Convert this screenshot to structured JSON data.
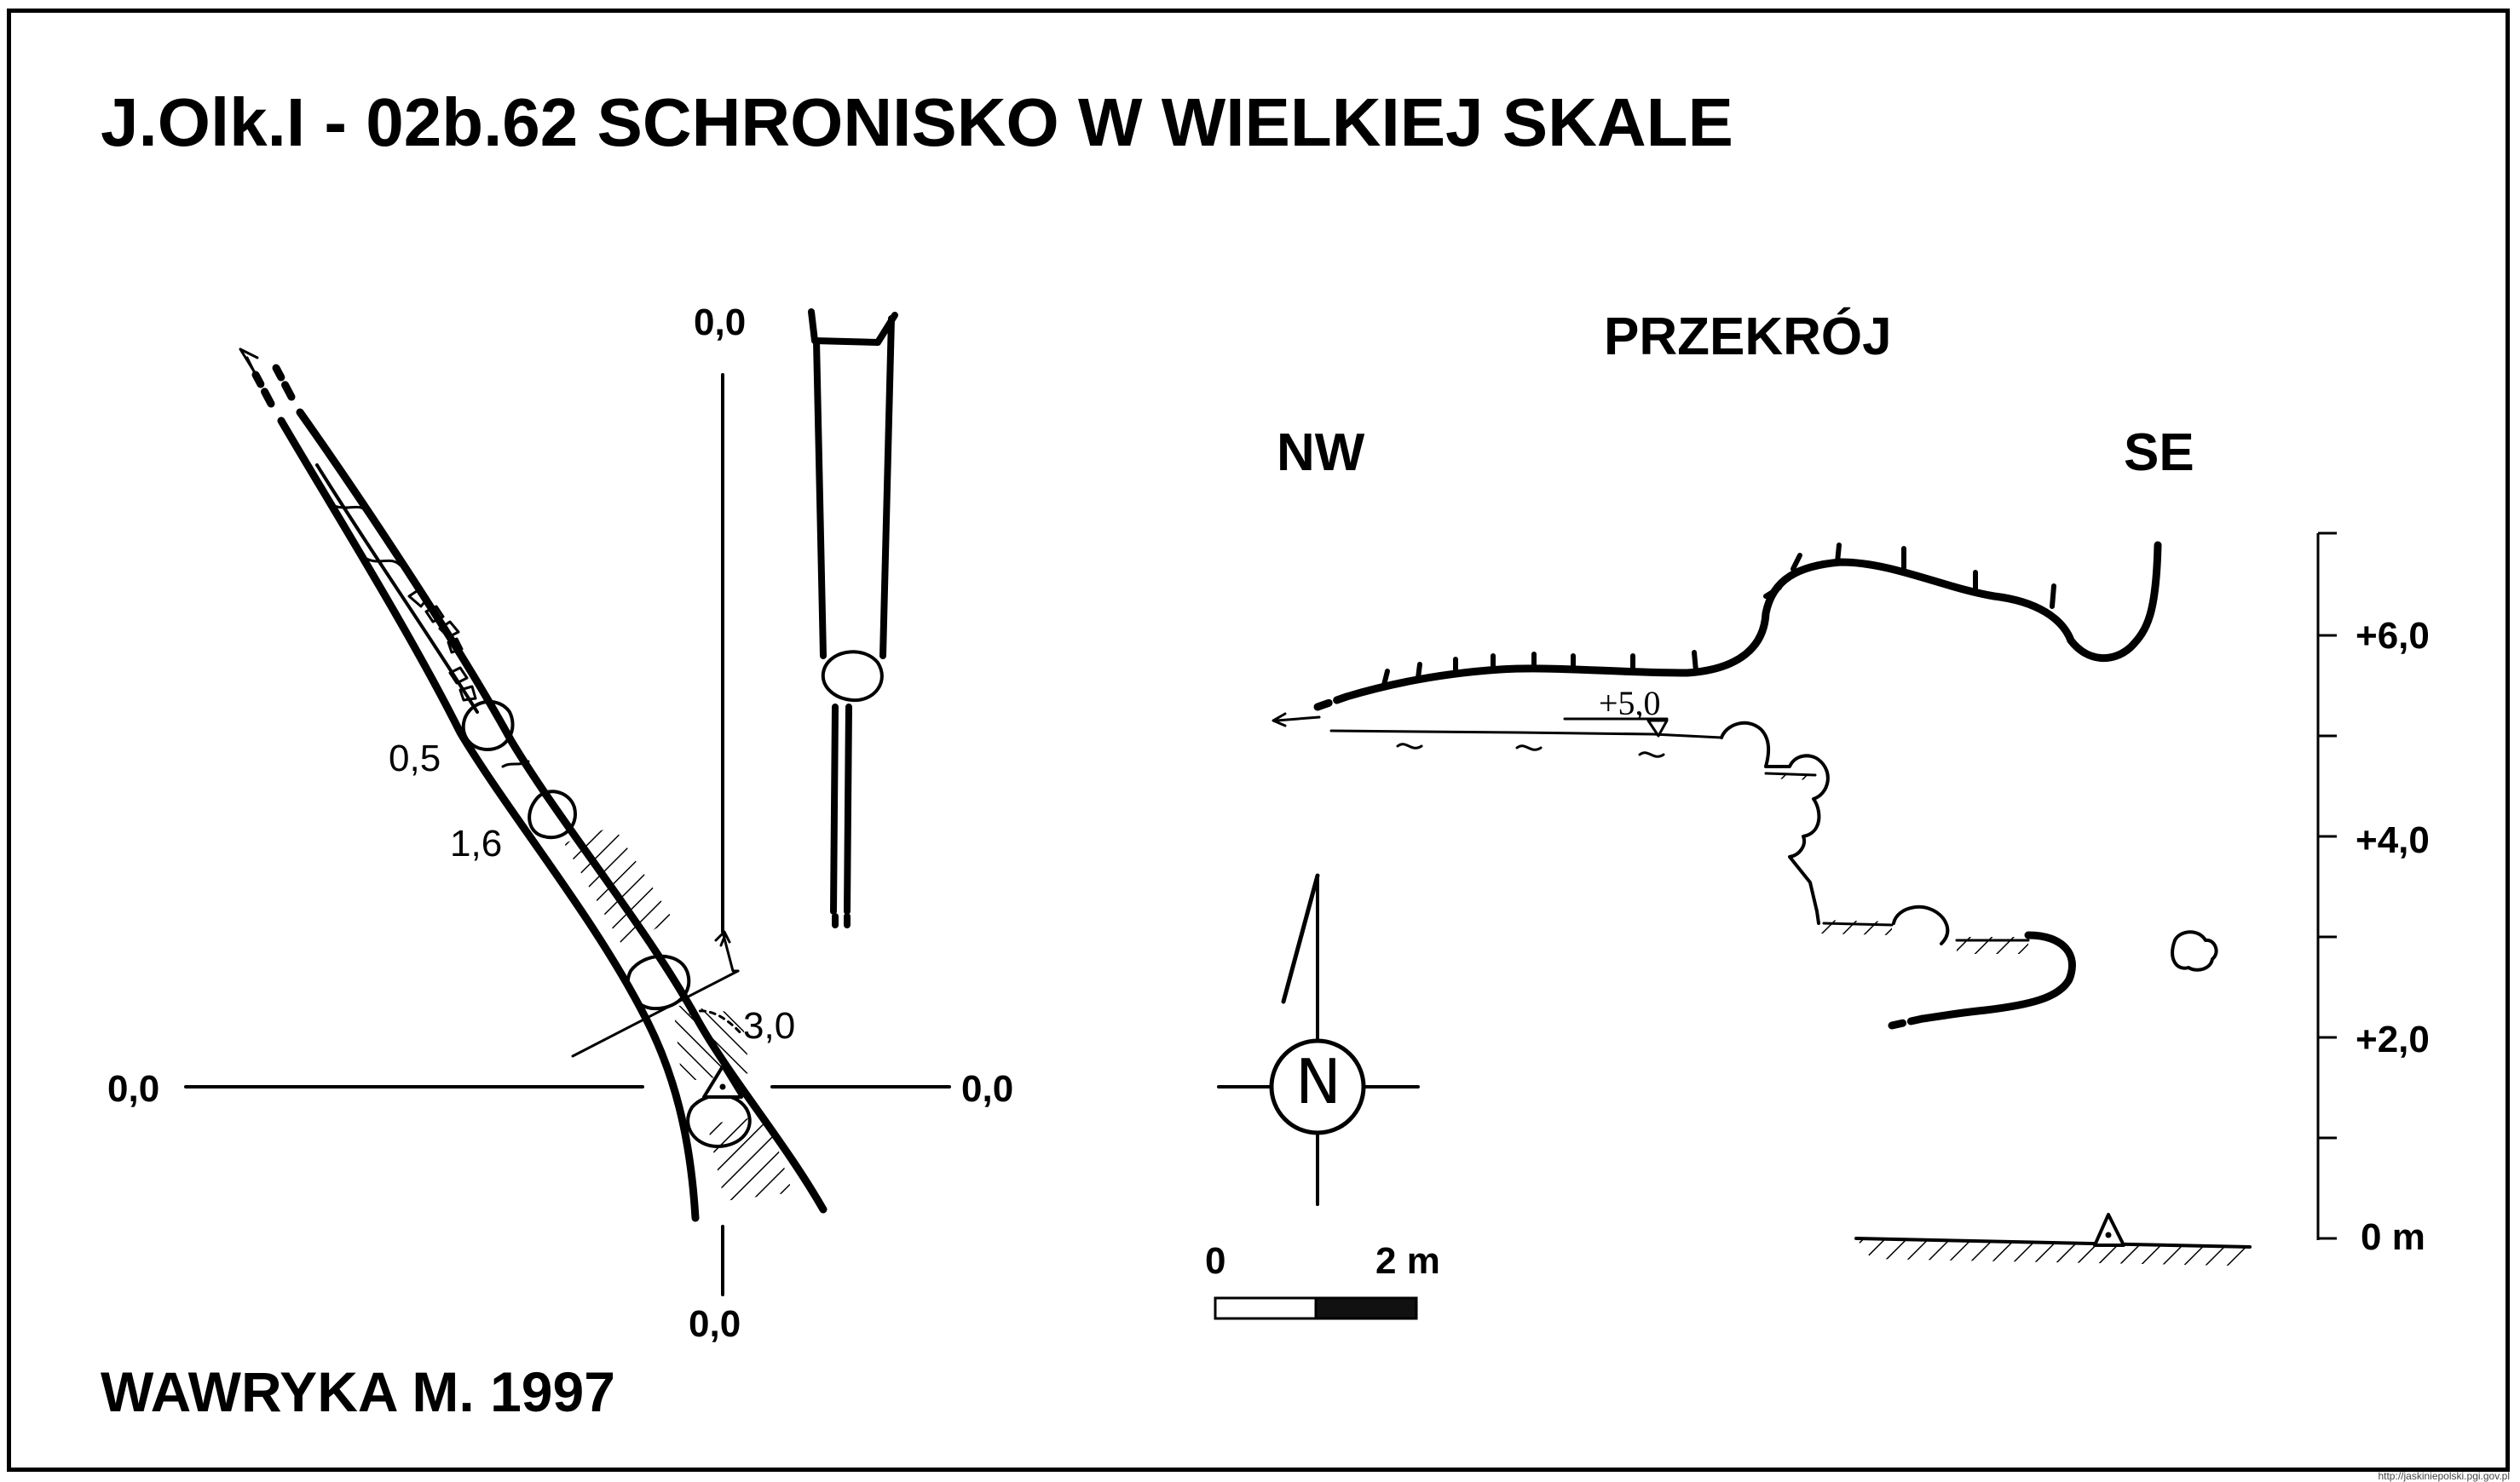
{
  "title": "J.Olk.I - 02b.62  SCHRONISKO W WIELKIEJ SKALE",
  "author": "WAWRYKA M. 1997",
  "section_title": "PRZEKRÓJ",
  "section_left": "NW",
  "section_right": "SE",
  "plan": {
    "axis_top": "0,0",
    "axis_left": "0,0",
    "axis_right": "0,0",
    "axis_bottom": "0,0",
    "depth_1": "0,5",
    "depth_2": "1,6",
    "depth_3": "3,0"
  },
  "section": {
    "level_mark": "+5,0"
  },
  "scale_bar": {
    "start_label": "0",
    "end_label": "2 m"
  },
  "north_arrow": {
    "label": "N"
  },
  "vertical_scale": {
    "labels": [
      "+6,0",
      "+4,0",
      "+2,0",
      "0 m"
    ]
  },
  "source_url": "http://jaskiniepolski.pgi.gov.pl"
}
